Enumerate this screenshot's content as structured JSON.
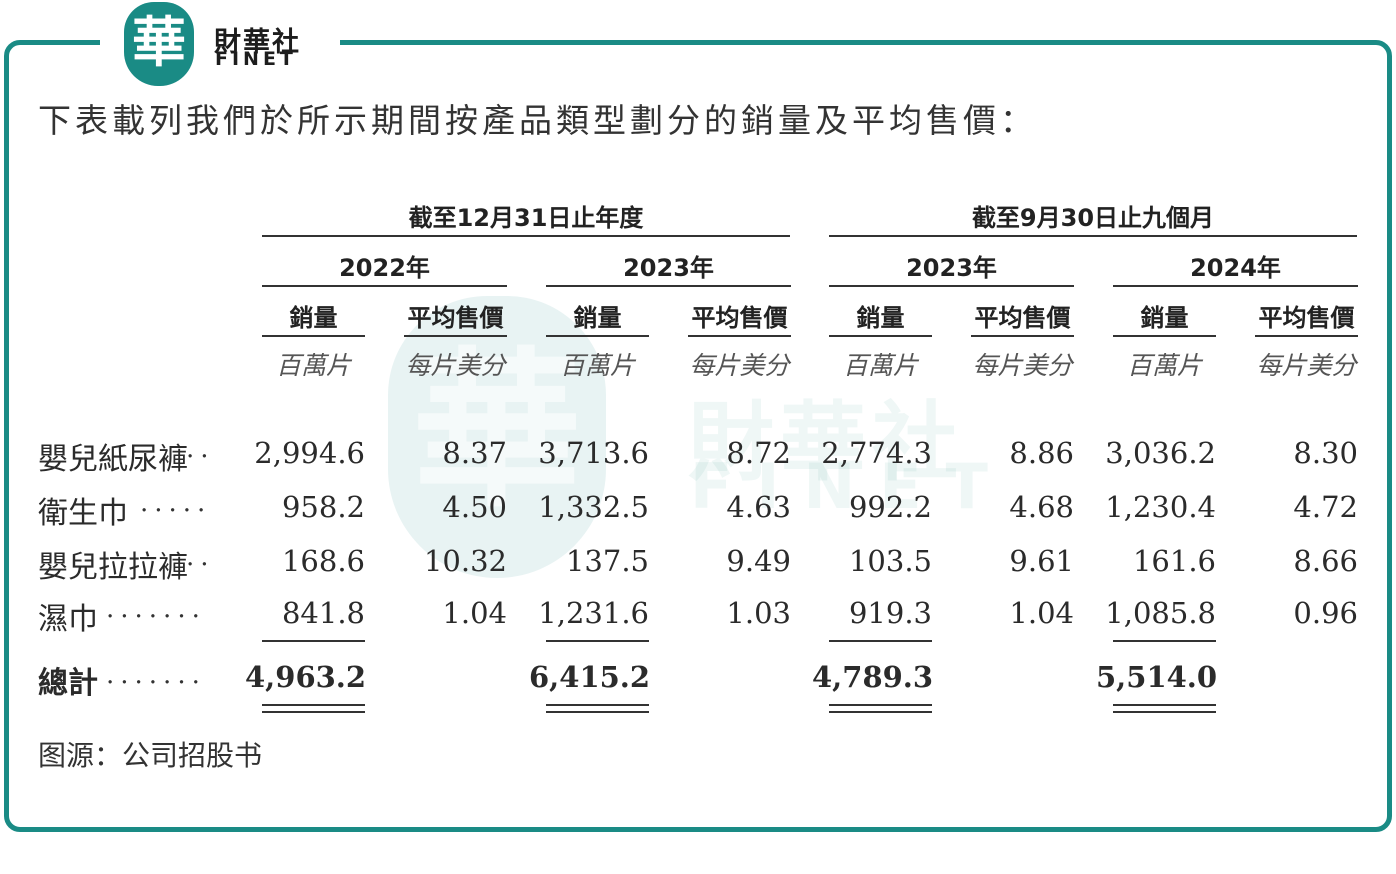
{
  "brand": {
    "logo_glyph": "華",
    "name_cn": "財華社",
    "name_en": "FINET"
  },
  "watermark": {
    "glyph": "華",
    "cn": "財華社",
    "en": "FINET"
  },
  "intro": "下表載列我們於所示期間按產品類型劃分的銷量及平均售價：",
  "table": {
    "period_headers": [
      "截至12月31日止年度",
      "截至9月30日止九個月"
    ],
    "year_headers": [
      "2022年",
      "2023年",
      "2023年",
      "2024年"
    ],
    "col_labels": [
      "銷量",
      "平均售價"
    ],
    "units": [
      "百萬片",
      "每片美分"
    ],
    "rows": [
      {
        "label": "嬰兒紙尿褲",
        "leader": "..",
        "values": [
          "2,994.6",
          "8.37",
          "3,713.6",
          "8.72",
          "2,774.3",
          "8.86",
          "3,036.2",
          "8.30"
        ]
      },
      {
        "label": "衛生巾",
        "leader": ".....",
        "values": [
          "958.2",
          "4.50",
          "1,332.5",
          "4.63",
          "992.2",
          "4.68",
          "1,230.4",
          "4.72"
        ]
      },
      {
        "label": "嬰兒拉拉褲",
        "leader": "..",
        "values": [
          "168.6",
          "10.32",
          "137.5",
          "9.49",
          "103.5",
          "9.61",
          "161.6",
          "8.66"
        ]
      },
      {
        "label": "濕巾",
        "leader": ".......",
        "values": [
          "841.8",
          "1.04",
          "1,231.6",
          "1.03",
          "919.3",
          "1.04",
          "1,085.8",
          "0.96"
        ]
      }
    ],
    "total": {
      "label": "總計",
      "leader": ".......",
      "values": [
        "4,963.2",
        "",
        "6,415.2",
        "",
        "4,789.3",
        "",
        "5,514.0",
        ""
      ]
    }
  },
  "source": "图源：公司招股书",
  "colors": {
    "accent": "#1a8b85"
  }
}
